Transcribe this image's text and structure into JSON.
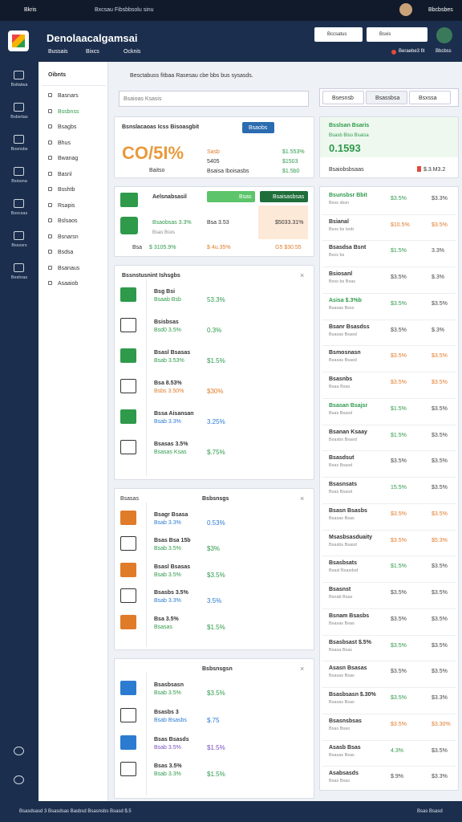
{
  "topbar": {
    "app": "Bkris",
    "path": "Bxcsau Fibsbbsolu sinu",
    "user": "Bbcbsbes"
  },
  "header": {
    "title": "Denolaacalgamsai",
    "nav": [
      "Bussais",
      "Bixcs",
      "Ocknis"
    ],
    "search": [
      "Bccsatus",
      "Bsxis"
    ],
    "status": "Beraebe3 fit",
    "account": "Bbcbss"
  },
  "rail": [
    "Bsitatwa",
    "Bsbsrtas",
    "Bosnsbs",
    "Bsiosna",
    "Bsxcsas",
    "Bssxsrs",
    "Beshras"
  ],
  "menu": {
    "title": "Oibnts",
    "items": [
      "Basnars",
      "Bssbnss",
      "Bsagbs",
      "Bhus",
      "Bwanag",
      "Basnl",
      "Bsshtb",
      "Rsapis",
      "Bslsaos",
      "Bsnarsn",
      "Bsdsa",
      "Bsanaus",
      "Asaaiob"
    ]
  },
  "toolbar": {
    "text": "Besctabuss fitbaa Rasesau cbe bbs bus sysasds.",
    "search": "Bsaioas Ksasis",
    "tabs": [
      "Bsesnsb",
      "Bsassbsa",
      "Bsxssa"
    ]
  },
  "summary": {
    "title": "Bsnslacaoas Icss Bisoasgbit",
    "button": "Bsaobs",
    "big": "CO/5I%",
    "big_sub": "Baitso",
    "mid": [
      "Sasb",
      "5405",
      "Bsaisa Iboisasbs"
    ],
    "right": [
      "$1.553%",
      "$1503",
      "$1.5b0"
    ]
  },
  "promo": {
    "label": "Aelsnabsasil",
    "button": "Bsas",
    "button2": "Bsaisasbsas",
    "r1": [
      "Bsaobsas 3.3%",
      "Bsa 3.53",
      "$5033.31%"
    ],
    "r2": "Bsas Bsxs",
    "r3": [
      "Bsa",
      "$ 3105.9%",
      "$ 4u.35%",
      "G5 $30.55"
    ]
  },
  "cards": [
    {
      "title": "Bssnstusnint Ishsgbs",
      "rows": [
        {
          "label": "Bsg Bsi",
          "sub": "Bsaab Bsb",
          "pct": "53.3%",
          "color": "#2e9a4a"
        },
        {
          "label": "Bsisbsas",
          "sub": "Bsd0 3.5%",
          "pct": "0.3%",
          "color": "#2e9a4a"
        },
        {
          "label": "Bsasl Bsasas",
          "sub": "Bsab 3.53%",
          "pct": "$1.5%",
          "color": "#2e9a4a"
        },
        {
          "label": "Bsa 8.53%",
          "sub": "Bsbs 3.50%",
          "pct": "$30%",
          "color": "#e07b2a"
        },
        {
          "label": "Bssa Aisansan",
          "sub": "Bsab 3.3%",
          "pct": "3.25%",
          "color": "#2b7bd0"
        },
        {
          "label": "Bsasas 3.5%",
          "sub": "Bsasas Ksas",
          "pct": "$.75%",
          "color": "#2e9a4a"
        }
      ]
    },
    {
      "title": "Bsbsnsgs",
      "head": "Bsasas",
      "rows": [
        {
          "label": "Bsagr Bsasa",
          "sub": "Bsab 3.3%",
          "pct": "0.53%",
          "color": "#2b7bd0"
        },
        {
          "label": "Bsas Bsa 15b",
          "sub": "Bsab 3.5%",
          "pct": "$3%",
          "color": "#2e9a4a"
        },
        {
          "label": "Bsasl Bsasas",
          "sub": "Bsab 3.5%",
          "pct": "$3.5%",
          "color": "#2e9a4a"
        },
        {
          "label": "Bsasbs 3.5%",
          "sub": "Bsab 3.3%",
          "pct": "3.5%",
          "color": "#2b7bd0"
        },
        {
          "label": "Bsa 3.5%",
          "sub": "Bsasas",
          "pct": "$1.5%",
          "color": "#2e9a4a"
        }
      ]
    },
    {
      "title": "Bsbsnsgsn",
      "rows": [
        {
          "label": "Bsasbsasn",
          "sub": "Bsab 3.5%",
          "pct": "$3.5%",
          "color": "#2e9a4a"
        },
        {
          "label": "Bsasbs 3",
          "sub": "Bsab Bsasbs",
          "pct": "$.75",
          "color": "#2b7bd0"
        },
        {
          "label": "Bsas Bsasds",
          "sub": "Bsab 3.5%",
          "pct": "$1.5%",
          "color": "#7a4fc0"
        },
        {
          "label": "Bsas 3.5%",
          "sub": "Bsab 3.3%",
          "pct": "$1.5%",
          "color": "#2e9a4a"
        }
      ]
    }
  ],
  "side_card": {
    "title": "Bsslsan Bsaris",
    "sub": "Bsasb Biso Bsaisa",
    "big": "0.1593",
    "foot": "Bsaiobsbsaas",
    "value": "$.3.M3.2"
  },
  "list": [
    {
      "name": "Bsunsbsr Bbit",
      "sub": "Bsxs sbsn",
      "pct": "$3.5%",
      "val": "$3.3%",
      "color": "#2e9a4a"
    },
    {
      "name": "Bsianal",
      "sub": "Bsxs bs Isnb",
      "pct": "$10.5%",
      "val": "$3.5%",
      "color": "#e07b2a"
    },
    {
      "name": "Bsasdsa Bsnt",
      "sub": "Bsxs bs",
      "pct": "$1.5%",
      "val": "3.3%",
      "color": "#2e9a4a"
    },
    {
      "name": "Bsiosanl",
      "sub": "Bsxs bs Bsas",
      "pct": "$3.5%",
      "val": "$.3%",
      "color": "#444"
    },
    {
      "name": "Asisa $.3%b",
      "sub": "Bsasas Bsxs",
      "pct": "$3.5%",
      "val": "$3.5%",
      "color": "#2e9a4a"
    },
    {
      "name": "Bsanr Bsasdss",
      "sub": "Bsasas Bsasd",
      "pct": "$3.5%",
      "val": "$.3%",
      "color": "#444"
    },
    {
      "name": "Bsmosnasn",
      "sub": "Bsasas Bsasd",
      "pct": "$3.5%",
      "val": "$3.5%",
      "color": "#e07b2a"
    },
    {
      "name": "Bsasnbs",
      "sub": "Bsaa Bsas",
      "pct": "$3.5%",
      "val": "$3.5%",
      "color": "#e07b2a"
    },
    {
      "name": "Bsasan Bsajsr",
      "sub": "Bsas Bsasd",
      "pct": "$1.5%",
      "val": "$3.5%",
      "color": "#2e9a4a"
    },
    {
      "name": "Bsanan Ksaay",
      "sub": "Bsasbs Bsasd",
      "pct": "$1.5%",
      "val": "$3.5%",
      "color": "#2e9a4a"
    },
    {
      "name": "Bsasdsut",
      "sub": "Bsas Bsasd",
      "pct": "$3.5%",
      "val": "$3.5%",
      "color": "#444"
    },
    {
      "name": "Bsasnsats",
      "sub": "Bsas Bsasd",
      "pct": "15.5%",
      "val": "$3.5%",
      "color": "#2e9a4a"
    },
    {
      "name": "Bsasn Bsasbs",
      "sub": "Bsasas Bsas",
      "pct": "$3.5%",
      "val": "$3.5%",
      "color": "#e07b2a"
    },
    {
      "name": "Msasbsasduaity",
      "sub": "Bsasbs Bsasd",
      "pct": "$3.5%",
      "val": "$5.3%",
      "color": "#e07b2a"
    },
    {
      "name": "Bsasbsats",
      "sub": "Bsasl Bsasdsd",
      "pct": "$1.5%",
      "val": "$3.5%",
      "color": "#2e9a4a"
    },
    {
      "name": "Bsasnst",
      "sub": "Bsnab Bsas",
      "pct": "$3.5%",
      "val": "$3.5%",
      "color": "#444"
    },
    {
      "name": "Bsnam Bsasbs",
      "sub": "Bsasas Bsas",
      "pct": "$3.5%",
      "val": "$3.5%",
      "color": "#444"
    },
    {
      "name": "Bsasbsast $.5%",
      "sub": "Bsasa Bsas",
      "pct": "$3.5%",
      "val": "$3.5%",
      "color": "#2e9a4a"
    },
    {
      "name": "Asasn Bsasas",
      "sub": "Bsasas Bsas",
      "pct": "$3.5%",
      "val": "$3.5%",
      "color": "#444"
    },
    {
      "name": "Bsasbsasn $.30%",
      "sub": "Bsasas Bsas",
      "pct": "$3.5%",
      "val": "$3.3%",
      "color": "#2e9a4a"
    },
    {
      "name": "Bsasnsbsas",
      "sub": "Bsas Bsas",
      "pct": "$3.5%",
      "val": "$3.30%",
      "color": "#e07b2a"
    },
    {
      "name": "Asasb Bsas",
      "sub": "Bsasas Bsas",
      "pct": "4.3%",
      "val": "$3.5%",
      "color": "#2e9a4a"
    },
    {
      "name": "Asabsasds",
      "sub": "Bsas Bsas",
      "pct": "$.9%",
      "val": "$3.3%",
      "color": "#444"
    }
  ],
  "footer": {
    "left": "Bsasdsasd 3 Bsasdsas Basbsd Bsasnsbs Bsasd $.5",
    "right": "Bsas Bsasd"
  }
}
